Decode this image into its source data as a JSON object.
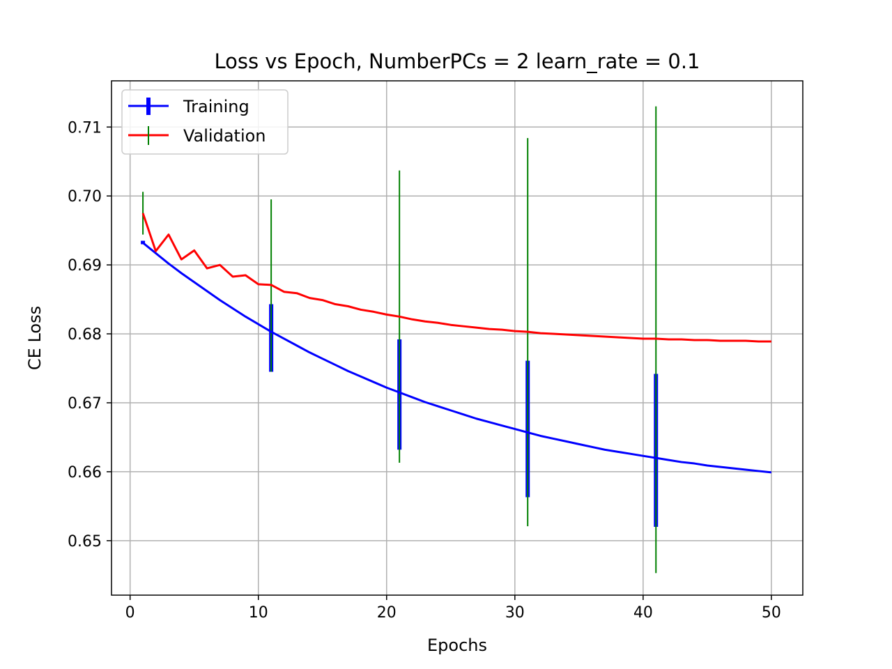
{
  "chart_data": {
    "type": "line",
    "title": "Loss vs Epoch, NumberPCs = 2 learn_rate = 0.1",
    "xlabel": "Epochs",
    "ylabel": "CE Loss",
    "xlim": [
      -1.45,
      52.45
    ],
    "ylim": [
      0.6421,
      0.7167
    ],
    "xticks": [
      0,
      10,
      20,
      30,
      40,
      50
    ],
    "yticks": [
      0.65,
      0.66,
      0.67,
      0.68,
      0.69,
      0.7,
      0.71
    ],
    "grid": true,
    "legend_position": "upper-left",
    "x": [
      1,
      2,
      3,
      4,
      5,
      6,
      7,
      8,
      9,
      10,
      11,
      12,
      13,
      14,
      15,
      16,
      17,
      18,
      19,
      20,
      21,
      22,
      23,
      24,
      25,
      26,
      27,
      28,
      29,
      30,
      31,
      32,
      33,
      34,
      35,
      36,
      37,
      38,
      39,
      40,
      41,
      42,
      43,
      44,
      45,
      46,
      47,
      48,
      49,
      50
    ],
    "series": [
      {
        "name": "Training",
        "color": "#0000ff",
        "values": [
          0.6932,
          0.6917,
          0.6902,
          0.6888,
          0.6875,
          0.6862,
          0.6849,
          0.6837,
          0.6825,
          0.6814,
          0.6803,
          0.6793,
          0.6783,
          0.6773,
          0.6764,
          0.6755,
          0.6746,
          0.6738,
          0.673,
          0.6722,
          0.6715,
          0.6708,
          0.6701,
          0.6695,
          0.6689,
          0.6683,
          0.6677,
          0.6672,
          0.6667,
          0.6662,
          0.6657,
          0.6652,
          0.6648,
          0.6644,
          0.664,
          0.6636,
          0.6632,
          0.6629,
          0.6626,
          0.6623,
          0.662,
          0.6617,
          0.6614,
          0.6612,
          0.6609,
          0.6607,
          0.6605,
          0.6603,
          0.6601,
          0.6599
        ],
        "error_bars": [
          {
            "x": 1,
            "low": 0.693,
            "high": 0.6935
          },
          {
            "x": 11,
            "low": 0.6745,
            "high": 0.6843
          },
          {
            "x": 21,
            "low": 0.6632,
            "high": 0.6792
          },
          {
            "x": 31,
            "low": 0.6563,
            "high": 0.6761
          },
          {
            "x": 41,
            "low": 0.652,
            "high": 0.6742
          }
        ]
      },
      {
        "name": "Validation",
        "color": "#ff0000",
        "values": [
          0.6975,
          0.692,
          0.6944,
          0.6908,
          0.6921,
          0.6895,
          0.69,
          0.6883,
          0.6885,
          0.6872,
          0.6871,
          0.6861,
          0.6859,
          0.6852,
          0.6849,
          0.6843,
          0.684,
          0.6835,
          0.6832,
          0.6828,
          0.6825,
          0.6821,
          0.6818,
          0.6816,
          0.6813,
          0.6811,
          0.6809,
          0.6807,
          0.6806,
          0.6804,
          0.6803,
          0.6801,
          0.68,
          0.6799,
          0.6798,
          0.6797,
          0.6796,
          0.6795,
          0.6794,
          0.6793,
          0.6793,
          0.6792,
          0.6792,
          0.6791,
          0.6791,
          0.679,
          0.679,
          0.679,
          0.6789,
          0.6789
        ],
        "error_bars_color": "#008000",
        "error_bars": [
          {
            "x": 1,
            "low": 0.6944,
            "high": 0.7006
          },
          {
            "x": 11,
            "low": 0.6745,
            "high": 0.6995
          },
          {
            "x": 21,
            "low": 0.6613,
            "high": 0.7037
          },
          {
            "x": 31,
            "low": 0.6521,
            "high": 0.7084
          },
          {
            "x": 41,
            "low": 0.6453,
            "high": 0.713
          }
        ]
      }
    ]
  }
}
